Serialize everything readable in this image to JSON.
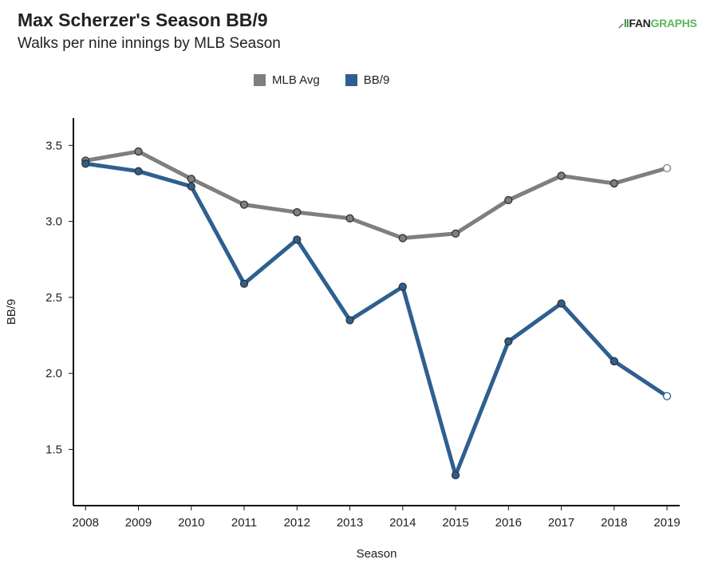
{
  "header": {
    "title": "Max Scherzer's Season BB/9",
    "subtitle": "Walks per nine innings by MLB Season",
    "logo": "FANGRAPHS"
  },
  "chart_data": {
    "type": "line",
    "title": "Max Scherzer's Season BB/9",
    "subtitle": "Walks per nine innings by MLB Season",
    "xlabel": "Season",
    "ylabel": "BB/9",
    "x": [
      2008,
      2009,
      2010,
      2011,
      2012,
      2013,
      2014,
      2015,
      2016,
      2017,
      2018,
      2019
    ],
    "xticks": [
      "2008",
      "2009",
      "2010",
      "2011",
      "2012",
      "2013",
      "2014",
      "2015",
      "2016",
      "2017",
      "2018",
      "2019"
    ],
    "yticks": [
      "1.5",
      "2.0",
      "2.5",
      "3.0",
      "3.5"
    ],
    "ytick_values": [
      1.5,
      2.0,
      2.5,
      3.0,
      3.5
    ],
    "ylim": [
      1.13,
      3.68
    ],
    "xlim": [
      2007.77,
      2019.24
    ],
    "grid": false,
    "legend_position": "top-center",
    "series": [
      {
        "name": "MLB Avg",
        "color": "#7f7f7f",
        "values": [
          3.4,
          3.46,
          3.28,
          3.11,
          3.06,
          3.02,
          2.89,
          2.92,
          3.14,
          3.3,
          3.25,
          3.35
        ]
      },
      {
        "name": "BB/9",
        "color": "#2e5f8f",
        "values": [
          3.38,
          3.33,
          3.23,
          2.59,
          2.88,
          2.35,
          2.57,
          1.33,
          2.21,
          2.46,
          2.08,
          1.85
        ]
      }
    ]
  }
}
